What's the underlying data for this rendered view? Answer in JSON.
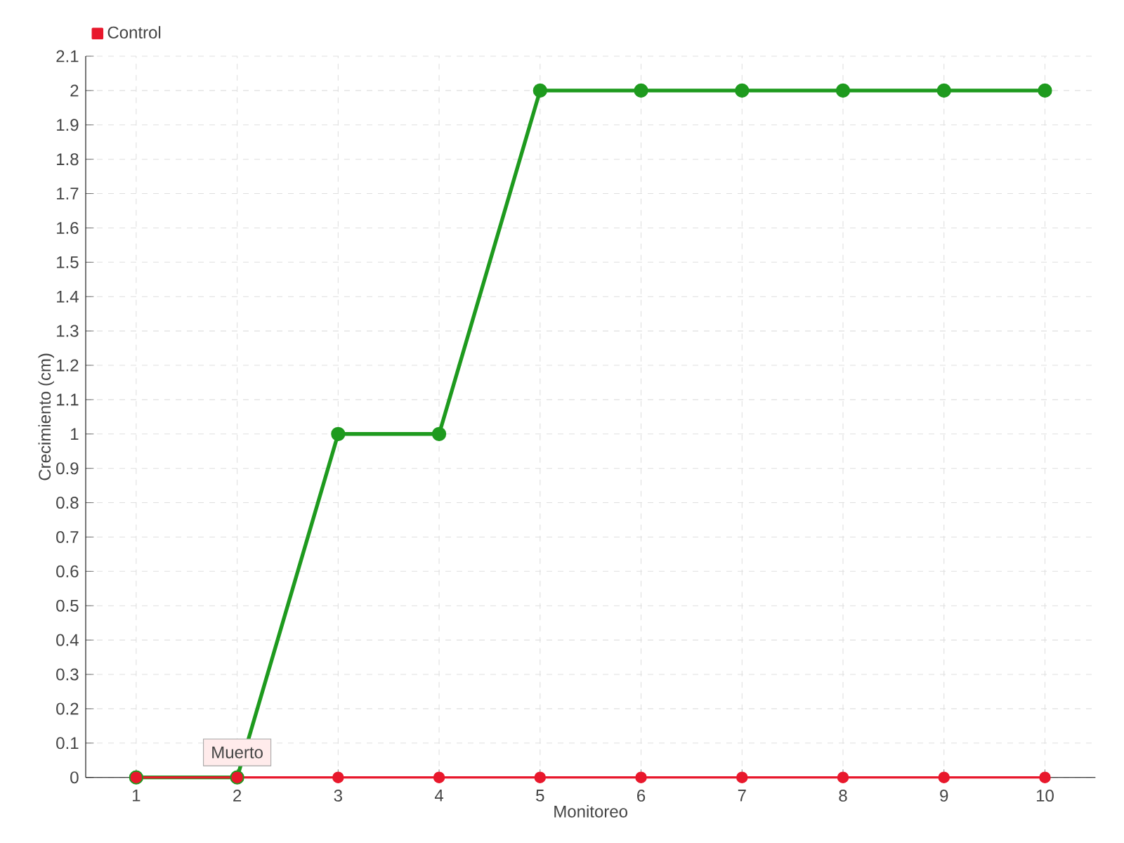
{
  "chart_data": {
    "type": "line",
    "xlabel": "Monitoreo",
    "ylabel": "Crecimiento (cm)",
    "categories": [
      "1",
      "2",
      "3",
      "4",
      "5",
      "6",
      "7",
      "8",
      "9",
      "10"
    ],
    "series": [
      {
        "color": "#1e9a1e",
        "values": [
          0,
          0,
          1,
          1,
          2,
          2,
          2,
          2,
          2,
          2
        ]
      },
      {
        "name": "Control",
        "color": "#e8182c",
        "values": [
          0,
          0,
          0,
          0,
          0,
          0,
          0,
          0,
          0,
          0
        ]
      }
    ],
    "ylim": [
      0,
      2.1
    ],
    "yticks": [
      0,
      0.1,
      0.2,
      0.3,
      0.4,
      0.5,
      0.6,
      0.7,
      0.8,
      0.9,
      1,
      1.1,
      1.2,
      1.3,
      1.4,
      1.5,
      1.6,
      1.7,
      1.8,
      1.9,
      2,
      2.1
    ],
    "grid": true,
    "legend": "top left",
    "marker": "circle",
    "line_style": "solid",
    "annotations": [
      {
        "text": "Muerto",
        "x": "2",
        "y": 0
      }
    ]
  }
}
